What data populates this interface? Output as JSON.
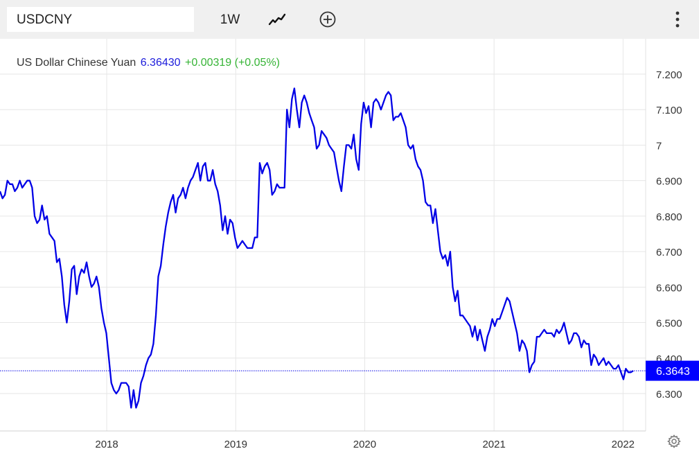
{
  "toolbar": {
    "symbol": "USDCNY",
    "period": "1W",
    "chart_type_icon": "line-chart-icon",
    "add_icon": "plus-circle-icon",
    "menu_icon": "more-vertical-icon"
  },
  "quote": {
    "name": "US Dollar Chinese Yuan",
    "price": "6.36430",
    "change": "+0.00319 (+0.05%)"
  },
  "last_price_label": "6.3643",
  "colors": {
    "line": "#0000e6",
    "price_text": "#1a1adb",
    "change_text": "#36b436",
    "last_label_bg": "#0000ff",
    "grid": "#e6e6e6"
  },
  "settings_icon": "gear-icon",
  "chart_data": {
    "type": "line",
    "title": "US Dollar Chinese Yuan",
    "xlabel": "",
    "ylabel": "",
    "ylim": [
      6.2,
      7.3
    ],
    "xlim": [
      "2017-03-05",
      "2022-03-06"
    ],
    "y_ticks": [
      7.2,
      7.1,
      7.0,
      6.9,
      6.8,
      6.7,
      6.6,
      6.5,
      6.4,
      6.3
    ],
    "y_tick_labels": [
      "7.200",
      "7.100",
      "7",
      "6.900",
      "6.800",
      "6.700",
      "6.600",
      "6.500",
      "6.400",
      "6.300"
    ],
    "x_ticks": [
      "2018-01-01",
      "2019-01-01",
      "2020-01-01",
      "2021-01-01",
      "2022-01-01"
    ],
    "x_tick_labels": [
      "2018",
      "2019",
      "2020",
      "2021",
      "2022"
    ],
    "grid": true,
    "last_value": 6.3643,
    "series": [
      {
        "name": "USDCNY",
        "points": [
          [
            "2017-03-05",
            6.87
          ],
          [
            "2017-03-12",
            6.85
          ],
          [
            "2017-03-19",
            6.86
          ],
          [
            "2017-03-26",
            6.9
          ],
          [
            "2017-04-02",
            6.89
          ],
          [
            "2017-04-09",
            6.89
          ],
          [
            "2017-04-16",
            6.87
          ],
          [
            "2017-04-23",
            6.88
          ],
          [
            "2017-04-30",
            6.9
          ],
          [
            "2017-05-07",
            6.88
          ],
          [
            "2017-05-14",
            6.89
          ],
          [
            "2017-05-21",
            6.9
          ],
          [
            "2017-05-28",
            6.9
          ],
          [
            "2017-06-04",
            6.88
          ],
          [
            "2017-06-11",
            6.8
          ],
          [
            "2017-06-18",
            6.78
          ],
          [
            "2017-06-25",
            6.79
          ],
          [
            "2017-07-02",
            6.83
          ],
          [
            "2017-07-09",
            6.79
          ],
          [
            "2017-07-16",
            6.8
          ],
          [
            "2017-07-23",
            6.75
          ],
          [
            "2017-07-30",
            6.74
          ],
          [
            "2017-08-06",
            6.73
          ],
          [
            "2017-08-13",
            6.67
          ],
          [
            "2017-08-20",
            6.68
          ],
          [
            "2017-08-27",
            6.63
          ],
          [
            "2017-09-03",
            6.55
          ],
          [
            "2017-09-10",
            6.5
          ],
          [
            "2017-09-17",
            6.56
          ],
          [
            "2017-09-24",
            6.65
          ],
          [
            "2017-10-01",
            6.66
          ],
          [
            "2017-10-08",
            6.58
          ],
          [
            "2017-10-15",
            6.63
          ],
          [
            "2017-10-22",
            6.65
          ],
          [
            "2017-10-29",
            6.64
          ],
          [
            "2017-11-05",
            6.67
          ],
          [
            "2017-11-12",
            6.63
          ],
          [
            "2017-11-19",
            6.6
          ],
          [
            "2017-11-26",
            6.61
          ],
          [
            "2017-12-03",
            6.63
          ],
          [
            "2017-12-10",
            6.6
          ],
          [
            "2017-12-17",
            6.54
          ],
          [
            "2017-12-24",
            6.5
          ],
          [
            "2017-12-31",
            6.47
          ],
          [
            "2018-01-07",
            6.4
          ],
          [
            "2018-01-14",
            6.33
          ],
          [
            "2018-01-21",
            6.31
          ],
          [
            "2018-01-28",
            6.3
          ],
          [
            "2018-02-04",
            6.31
          ],
          [
            "2018-02-11",
            6.33
          ],
          [
            "2018-02-18",
            6.33
          ],
          [
            "2018-02-25",
            6.33
          ],
          [
            "2018-03-04",
            6.32
          ],
          [
            "2018-03-11",
            6.26
          ],
          [
            "2018-03-18",
            6.31
          ],
          [
            "2018-03-25",
            6.26
          ],
          [
            "2018-04-01",
            6.28
          ],
          [
            "2018-04-08",
            6.33
          ],
          [
            "2018-04-15",
            6.35
          ],
          [
            "2018-04-22",
            6.38
          ],
          [
            "2018-04-29",
            6.4
          ],
          [
            "2018-05-06",
            6.41
          ],
          [
            "2018-05-13",
            6.44
          ],
          [
            "2018-05-20",
            6.52
          ],
          [
            "2018-05-27",
            6.63
          ],
          [
            "2018-06-03",
            6.66
          ],
          [
            "2018-06-10",
            6.72
          ],
          [
            "2018-06-17",
            6.77
          ],
          [
            "2018-06-24",
            6.81
          ],
          [
            "2018-07-01",
            6.84
          ],
          [
            "2018-07-08",
            6.86
          ],
          [
            "2018-07-15",
            6.81
          ],
          [
            "2018-07-22",
            6.85
          ],
          [
            "2018-07-29",
            6.86
          ],
          [
            "2018-08-05",
            6.88
          ],
          [
            "2018-08-12",
            6.85
          ],
          [
            "2018-08-19",
            6.88
          ],
          [
            "2018-08-26",
            6.9
          ],
          [
            "2018-09-02",
            6.91
          ],
          [
            "2018-09-09",
            6.93
          ],
          [
            "2018-09-16",
            6.95
          ],
          [
            "2018-09-23",
            6.9
          ],
          [
            "2018-09-30",
            6.94
          ],
          [
            "2018-10-07",
            6.95
          ],
          [
            "2018-10-14",
            6.9
          ],
          [
            "2018-10-21",
            6.9
          ],
          [
            "2018-10-28",
            6.93
          ],
          [
            "2018-11-04",
            6.89
          ],
          [
            "2018-11-11",
            6.87
          ],
          [
            "2018-11-18",
            6.83
          ],
          [
            "2018-11-25",
            6.76
          ],
          [
            "2018-12-02",
            6.8
          ],
          [
            "2018-12-09",
            6.75
          ],
          [
            "2018-12-16",
            6.79
          ],
          [
            "2018-12-23",
            6.78
          ],
          [
            "2018-12-30",
            6.74
          ],
          [
            "2019-01-06",
            6.71
          ],
          [
            "2019-01-13",
            6.72
          ],
          [
            "2019-01-20",
            6.73
          ],
          [
            "2019-01-27",
            6.72
          ],
          [
            "2019-02-03",
            6.71
          ],
          [
            "2019-02-10",
            6.71
          ],
          [
            "2019-02-17",
            6.71
          ],
          [
            "2019-02-24",
            6.74
          ],
          [
            "2019-03-03",
            6.74
          ],
          [
            "2019-03-10",
            6.95
          ],
          [
            "2019-03-17",
            6.92
          ],
          [
            "2019-03-24",
            6.94
          ],
          [
            "2019-03-31",
            6.95
          ],
          [
            "2019-04-07",
            6.93
          ],
          [
            "2019-04-14",
            6.86
          ],
          [
            "2019-04-21",
            6.87
          ],
          [
            "2019-04-28",
            6.89
          ],
          [
            "2019-05-05",
            6.88
          ],
          [
            "2019-05-12",
            6.88
          ],
          [
            "2019-05-19",
            6.88
          ],
          [
            "2019-05-26",
            7.1
          ],
          [
            "2019-06-02",
            7.05
          ],
          [
            "2019-06-09",
            7.13
          ],
          [
            "2019-06-16",
            7.16
          ],
          [
            "2019-06-23",
            7.1
          ],
          [
            "2019-06-30",
            7.05
          ],
          [
            "2019-07-07",
            7.12
          ],
          [
            "2019-07-14",
            7.14
          ],
          [
            "2019-07-21",
            7.12
          ],
          [
            "2019-07-28",
            7.09
          ],
          [
            "2019-08-04",
            7.07
          ],
          [
            "2019-08-11",
            7.05
          ],
          [
            "2019-08-18",
            6.99
          ],
          [
            "2019-08-25",
            7.0
          ],
          [
            "2019-09-01",
            7.04
          ],
          [
            "2019-09-08",
            7.03
          ],
          [
            "2019-09-15",
            7.02
          ],
          [
            "2019-09-22",
            7.0
          ],
          [
            "2019-09-29",
            6.99
          ],
          [
            "2019-10-06",
            6.98
          ],
          [
            "2019-10-13",
            6.94
          ],
          [
            "2019-10-20",
            6.9
          ],
          [
            "2019-10-27",
            6.87
          ],
          [
            "2019-11-03",
            6.94
          ],
          [
            "2019-11-10",
            7.0
          ],
          [
            "2019-11-17",
            7.0
          ],
          [
            "2019-11-24",
            6.99
          ],
          [
            "2019-12-01",
            7.03
          ],
          [
            "2019-12-08",
            6.96
          ],
          [
            "2019-12-15",
            6.93
          ],
          [
            "2019-12-22",
            7.06
          ],
          [
            "2019-12-29",
            7.12
          ],
          [
            "2020-01-05",
            7.09
          ],
          [
            "2020-01-12",
            7.11
          ],
          [
            "2020-01-19",
            7.05
          ],
          [
            "2020-01-26",
            7.12
          ],
          [
            "2020-02-02",
            7.13
          ],
          [
            "2020-02-09",
            7.12
          ],
          [
            "2020-02-16",
            7.1
          ],
          [
            "2020-02-23",
            7.12
          ],
          [
            "2020-03-01",
            7.14
          ],
          [
            "2020-03-08",
            7.15
          ],
          [
            "2020-03-15",
            7.14
          ],
          [
            "2020-03-22",
            7.07
          ],
          [
            "2020-03-29",
            7.08
          ],
          [
            "2020-04-05",
            7.08
          ],
          [
            "2020-04-12",
            7.09
          ],
          [
            "2020-04-19",
            7.07
          ],
          [
            "2020-04-26",
            7.05
          ],
          [
            "2020-05-03",
            7.0
          ],
          [
            "2020-05-10",
            6.99
          ],
          [
            "2020-05-17",
            7.0
          ],
          [
            "2020-05-24",
            6.96
          ],
          [
            "2020-05-31",
            6.94
          ],
          [
            "2020-06-07",
            6.93
          ],
          [
            "2020-06-14",
            6.9
          ],
          [
            "2020-06-21",
            6.84
          ],
          [
            "2020-06-28",
            6.83
          ],
          [
            "2020-07-05",
            6.83
          ],
          [
            "2020-07-12",
            6.78
          ],
          [
            "2020-07-19",
            6.82
          ],
          [
            "2020-07-26",
            6.76
          ],
          [
            "2020-08-02",
            6.7
          ],
          [
            "2020-08-09",
            6.68
          ],
          [
            "2020-08-16",
            6.69
          ],
          [
            "2020-08-23",
            6.66
          ],
          [
            "2020-08-30",
            6.7
          ],
          [
            "2020-09-06",
            6.6
          ],
          [
            "2020-09-13",
            6.56
          ],
          [
            "2020-09-20",
            6.59
          ],
          [
            "2020-09-27",
            6.52
          ],
          [
            "2020-10-04",
            6.52
          ],
          [
            "2020-10-11",
            6.51
          ],
          [
            "2020-10-18",
            6.5
          ],
          [
            "2020-10-25",
            6.49
          ],
          [
            "2020-11-01",
            6.46
          ],
          [
            "2020-11-08",
            6.49
          ],
          [
            "2020-11-15",
            6.45
          ],
          [
            "2020-11-22",
            6.48
          ],
          [
            "2020-11-29",
            6.45
          ],
          [
            "2020-12-06",
            6.42
          ],
          [
            "2020-12-13",
            6.46
          ],
          [
            "2020-12-20",
            6.48
          ],
          [
            "2020-12-27",
            6.51
          ],
          [
            "2021-01-03",
            6.49
          ],
          [
            "2021-01-10",
            6.51
          ],
          [
            "2021-01-17",
            6.51
          ],
          [
            "2021-01-24",
            6.53
          ],
          [
            "2021-01-31",
            6.55
          ],
          [
            "2021-02-07",
            6.57
          ],
          [
            "2021-02-14",
            6.56
          ],
          [
            "2021-02-21",
            6.53
          ],
          [
            "2021-03-07",
            6.47
          ],
          [
            "2021-03-14",
            6.42
          ],
          [
            "2021-03-21",
            6.45
          ],
          [
            "2021-03-28",
            6.44
          ],
          [
            "2021-04-04",
            6.42
          ],
          [
            "2021-04-11",
            6.36
          ],
          [
            "2021-04-18",
            6.38
          ],
          [
            "2021-04-25",
            6.39
          ],
          [
            "2021-05-02",
            6.46
          ],
          [
            "2021-05-09",
            6.46
          ],
          [
            "2021-05-16",
            6.47
          ],
          [
            "2021-05-23",
            6.48
          ],
          [
            "2021-05-30",
            6.47
          ],
          [
            "2021-06-06",
            6.47
          ],
          [
            "2021-06-13",
            6.47
          ],
          [
            "2021-06-20",
            6.46
          ],
          [
            "2021-06-27",
            6.48
          ],
          [
            "2021-07-04",
            6.47
          ],
          [
            "2021-07-11",
            6.48
          ],
          [
            "2021-07-18",
            6.5
          ],
          [
            "2021-07-25",
            6.47
          ],
          [
            "2021-08-01",
            6.44
          ],
          [
            "2021-08-08",
            6.45
          ],
          [
            "2021-08-15",
            6.47
          ],
          [
            "2021-08-22",
            6.47
          ],
          [
            "2021-08-29",
            6.46
          ],
          [
            "2021-09-05",
            6.43
          ],
          [
            "2021-09-12",
            6.45
          ],
          [
            "2021-09-19",
            6.44
          ],
          [
            "2021-09-26",
            6.44
          ],
          [
            "2021-10-03",
            6.38
          ],
          [
            "2021-10-10",
            6.41
          ],
          [
            "2021-10-17",
            6.4
          ],
          [
            "2021-10-24",
            6.38
          ],
          [
            "2021-10-31",
            6.39
          ],
          [
            "2021-11-07",
            6.4
          ],
          [
            "2021-11-14",
            6.38
          ],
          [
            "2021-11-21",
            6.39
          ],
          [
            "2021-11-28",
            6.38
          ],
          [
            "2021-12-05",
            6.37
          ],
          [
            "2021-12-12",
            6.37
          ],
          [
            "2021-12-19",
            6.38
          ],
          [
            "2021-12-26",
            6.36
          ],
          [
            "2022-01-02",
            6.34
          ],
          [
            "2022-01-09",
            6.37
          ],
          [
            "2022-01-16",
            6.36
          ],
          [
            "2022-01-23",
            6.36
          ],
          [
            "2022-01-30",
            6.3643
          ]
        ]
      }
    ]
  }
}
